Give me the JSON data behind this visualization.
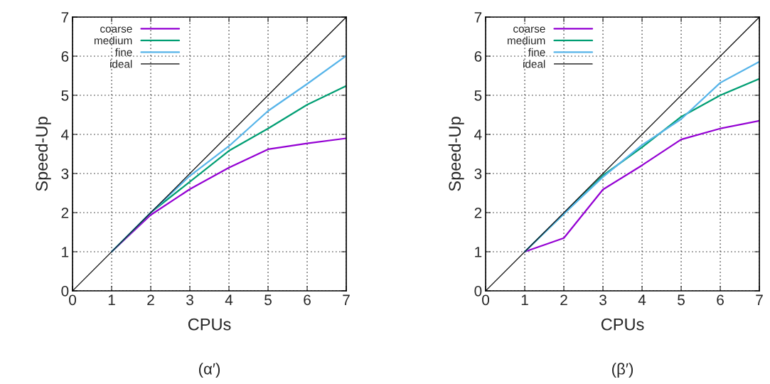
{
  "chart_data": [
    {
      "type": "line",
      "xlabel": "CPUs",
      "ylabel": "Speed-Up",
      "xlim": [
        0,
        7
      ],
      "ylim": [
        0,
        7
      ],
      "xticks": [
        0,
        1,
        2,
        3,
        4,
        5,
        6,
        7
      ],
      "yticks": [
        0,
        1,
        2,
        3,
        4,
        5,
        6,
        7
      ],
      "grid": true,
      "legend": "top left",
      "line_style": "solid",
      "annotations": [
        "(α′)"
      ],
      "series": [
        {
          "name": "coarse",
          "color": "#9400d3",
          "x": [
            1,
            2,
            3,
            4,
            5,
            6,
            7
          ],
          "values": [
            1.0,
            1.94,
            2.6,
            3.15,
            3.62,
            3.77,
            3.9
          ]
        },
        {
          "name": "medium",
          "color": "#009e73",
          "x": [
            1,
            2,
            3,
            4,
            5,
            6,
            7
          ],
          "values": [
            1.0,
            2.0,
            2.79,
            3.58,
            4.15,
            4.76,
            5.24
          ]
        },
        {
          "name": "fine",
          "color": "#56b4e9",
          "x": [
            1,
            2,
            3,
            4,
            5,
            6,
            7
          ],
          "values": [
            1.0,
            2.0,
            2.94,
            3.7,
            4.6,
            5.29,
            6.01
          ]
        },
        {
          "name": "ideal",
          "color": "#000000",
          "x": [
            0,
            7
          ],
          "values": [
            0,
            7
          ]
        }
      ]
    },
    {
      "type": "line",
      "xlabel": "CPUs",
      "ylabel": "Speed-Up",
      "xlim": [
        0,
        7
      ],
      "ylim": [
        0,
        7
      ],
      "xticks": [
        0,
        1,
        2,
        3,
        4,
        5,
        6,
        7
      ],
      "yticks": [
        0,
        1,
        2,
        3,
        4,
        5,
        6,
        7
      ],
      "grid": true,
      "legend": "top left",
      "line_style": "solid",
      "annotations": [
        "(β′)"
      ],
      "series": [
        {
          "name": "coarse",
          "color": "#9400d3",
          "x": [
            1,
            2,
            3,
            4,
            5,
            6,
            7
          ],
          "values": [
            1.0,
            1.35,
            2.59,
            3.21,
            3.87,
            4.15,
            4.35
          ]
        },
        {
          "name": "medium",
          "color": "#009e73",
          "x": [
            1,
            2,
            3,
            4,
            5,
            6,
            7
          ],
          "values": [
            1.0,
            1.97,
            2.95,
            3.67,
            4.45,
            5.0,
            5.42
          ]
        },
        {
          "name": "fine",
          "color": "#56b4e9",
          "x": [
            1,
            2,
            3,
            4,
            5,
            6,
            7
          ],
          "values": [
            1.0,
            1.97,
            2.91,
            3.73,
            4.39,
            5.32,
            5.86
          ]
        },
        {
          "name": "ideal",
          "color": "#000000",
          "x": [
            0,
            7
          ],
          "values": [
            0,
            7
          ]
        }
      ]
    }
  ]
}
